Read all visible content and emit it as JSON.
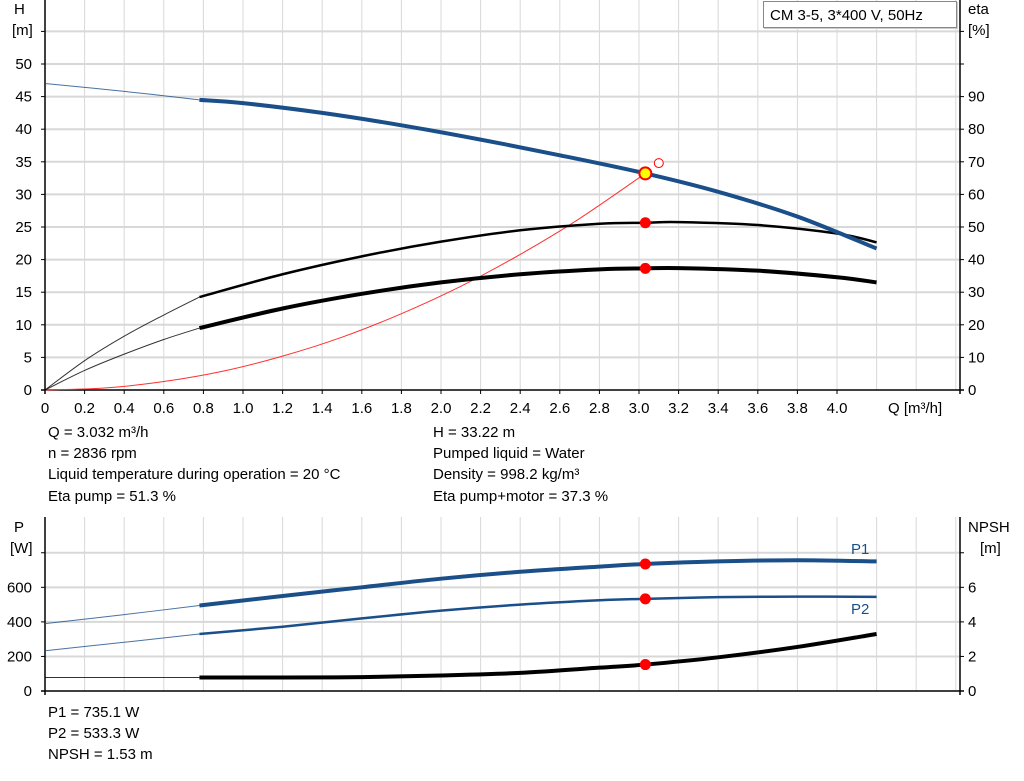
{
  "chart_data": [
    {
      "type": "line",
      "title": "CM 3-5, 3*400 V, 50Hz",
      "xlabel": "Q [m³/h]",
      "ylabel": {
        "symbol": "H",
        "unit": "[m]"
      },
      "y2label": {
        "symbol": "eta",
        "unit": "[%]"
      },
      "xlim": [
        0,
        4.6
      ],
      "ylim": [
        0,
        55
      ],
      "y2lim": [
        0,
        110
      ],
      "grid": true,
      "x_ticks": [
        "0",
        "0.2",
        "0.4",
        "0.6",
        "0.8",
        "1.0",
        "1.2",
        "1.4",
        "1.6",
        "1.8",
        "2.0",
        "2.2",
        "2.4",
        "2.6",
        "2.8",
        "3.0",
        "3.2",
        "3.4",
        "3.6",
        "3.8",
        "4.0"
      ],
      "y_ticks": [
        "0",
        "5",
        "10",
        "15",
        "20",
        "25",
        "30",
        "35",
        "40",
        "45",
        "50"
      ],
      "y2_ticks": [
        "0",
        "10",
        "20",
        "30",
        "40",
        "50",
        "60",
        "70",
        "80",
        "90"
      ],
      "series": [
        {
          "id": "H",
          "axis": "left",
          "color": "#1a4f8a",
          "x": [
            0,
            0.4,
            0.78,
            1.0,
            1.4,
            1.8,
            2.2,
            2.6,
            3.032,
            3.4,
            3.8,
            4.2
          ],
          "y": [
            47,
            45.8,
            44.5,
            44,
            42.5,
            40.6,
            38.4,
            36,
            33.22,
            30.4,
            26.6,
            21.7
          ]
        },
        {
          "id": "eta-pump",
          "axis": "right",
          "color": "#000000",
          "x": [
            0,
            0.2,
            0.4,
            0.6,
            0.78,
            1.2,
            1.6,
            2.0,
            2.4,
            2.8,
            3.032,
            3.2,
            3.6,
            4.0,
            4.2
          ],
          "y": [
            0,
            9,
            16.5,
            23,
            28.5,
            35.5,
            41,
            45.5,
            49,
            51,
            51.3,
            51.5,
            50.6,
            48,
            45.3
          ]
        },
        {
          "id": "eta-pump-motor",
          "axis": "right",
          "color": "#000000",
          "x": [
            0,
            0.2,
            0.4,
            0.6,
            0.78,
            1.2,
            1.6,
            2.0,
            2.4,
            2.8,
            3.032,
            3.2,
            3.6,
            4.0,
            4.2
          ],
          "y": [
            0,
            6,
            11,
            15.5,
            19,
            25,
            29.5,
            33,
            35.5,
            37,
            37.3,
            37.4,
            36.6,
            34.6,
            33
          ]
        },
        {
          "id": "system-curve",
          "axis": "left",
          "color": "#ff3030",
          "x": [
            0,
            0.3,
            0.6,
            0.9,
            1.2,
            1.5,
            1.8,
            2.1,
            2.4,
            2.7,
            3.032
          ],
          "y": [
            0,
            0.3,
            1.3,
            2.9,
            5.2,
            8.1,
            11.7,
            15.9,
            20.8,
            26.3,
            33.22
          ]
        }
      ],
      "duty_point": {
        "Q": 3.032,
        "H": 33.22,
        "eta_pump": 51.3,
        "eta_pump_motor": 37.3
      },
      "open_marker": {
        "Q": 3.1,
        "H": 34.8
      }
    },
    {
      "type": "line",
      "ylabel": {
        "symbol": "P",
        "unit": "[W]"
      },
      "y2label": {
        "symbol": "NPSH",
        "unit": "[m]"
      },
      "xlim": [
        0,
        4.6
      ],
      "ylim": [
        0,
        1000
      ],
      "y2lim": [
        0,
        10
      ],
      "grid": true,
      "y_ticks": [
        "0",
        "200",
        "400",
        "600"
      ],
      "y2_ticks": [
        "0",
        "2",
        "4",
        "6"
      ],
      "series": [
        {
          "id": "P1",
          "name": "P1",
          "axis": "left",
          "color": "#1a4f8a",
          "x": [
            0,
            0.4,
            0.78,
            1.2,
            1.6,
            2.0,
            2.4,
            2.8,
            3.032,
            3.4,
            3.8,
            4.2
          ],
          "y": [
            390,
            442,
            495,
            550,
            600,
            650,
            690,
            720,
            735.1,
            750,
            757,
            750
          ]
        },
        {
          "id": "P2",
          "name": "P2",
          "axis": "left",
          "color": "#1a4f8a",
          "x": [
            0,
            0.4,
            0.78,
            1.2,
            1.6,
            2.0,
            2.4,
            2.8,
            3.032,
            3.4,
            3.8,
            4.2
          ],
          "y": [
            233,
            282,
            330,
            372,
            420,
            465,
            500,
            525,
            533.3,
            543,
            546,
            545
          ]
        },
        {
          "id": "NPSH",
          "axis": "right",
          "color": "#000000",
          "x": [
            0,
            0.78,
            1.2,
            1.6,
            2.0,
            2.4,
            2.8,
            3.032,
            3.4,
            3.8,
            4.2
          ],
          "y": [
            0.78,
            0.78,
            0.78,
            0.8,
            0.9,
            1.05,
            1.35,
            1.53,
            1.95,
            2.55,
            3.3
          ]
        }
      ],
      "duty_point": {
        "Q": 3.032,
        "P1": 735.1,
        "P2": 533.3,
        "NPSH": 1.53
      }
    }
  ],
  "info_top": {
    "left": [
      "Q = 3.032 m³/h",
      "n = 2836 rpm",
      "Liquid temperature during operation = 20 °C",
      "Eta pump = 51.3 %"
    ],
    "right": [
      "H = 33.22 m",
      "Pumped liquid = Water",
      "Density = 998.2 kg/m³",
      "Eta pump+motor = 37.3 %"
    ]
  },
  "info_bottom": [
    "P1 = 735.1 W",
    "P2 = 533.3 W",
    "NPSH = 1.53 m"
  ],
  "colors": {
    "head": "#1a4f8a",
    "eta": "#000000",
    "system": "#ff3030",
    "marker": "#ff0000",
    "duty_marker_fill": "#ffff00",
    "grid": "#d8d8d8"
  }
}
